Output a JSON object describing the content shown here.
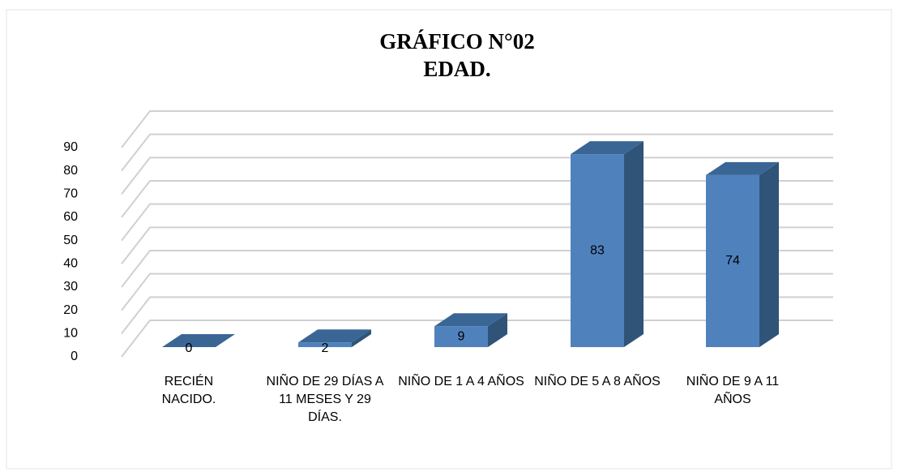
{
  "chart_data": {
    "type": "bar3d",
    "title": "GRÁFICO N°02",
    "subtitle": "EDAD.",
    "categories": [
      "RECIÉN NACIDO.",
      "NIÑO DE 29 DÍAS A 11 MESES Y 29 DÍAS.",
      "NIÑO DE 1 A 4 AÑOS",
      "NIÑO DE 5 A 8 AÑOS",
      "NIÑO DE 9 A 11 AÑOS"
    ],
    "values": [
      0,
      2,
      9,
      83,
      74
    ],
    "color": "#4f81bd",
    "ylim": [
      0,
      90
    ],
    "yticks": [
      0,
      10,
      20,
      30,
      40,
      50,
      60,
      70,
      80,
      90
    ],
    "grid": true
  }
}
